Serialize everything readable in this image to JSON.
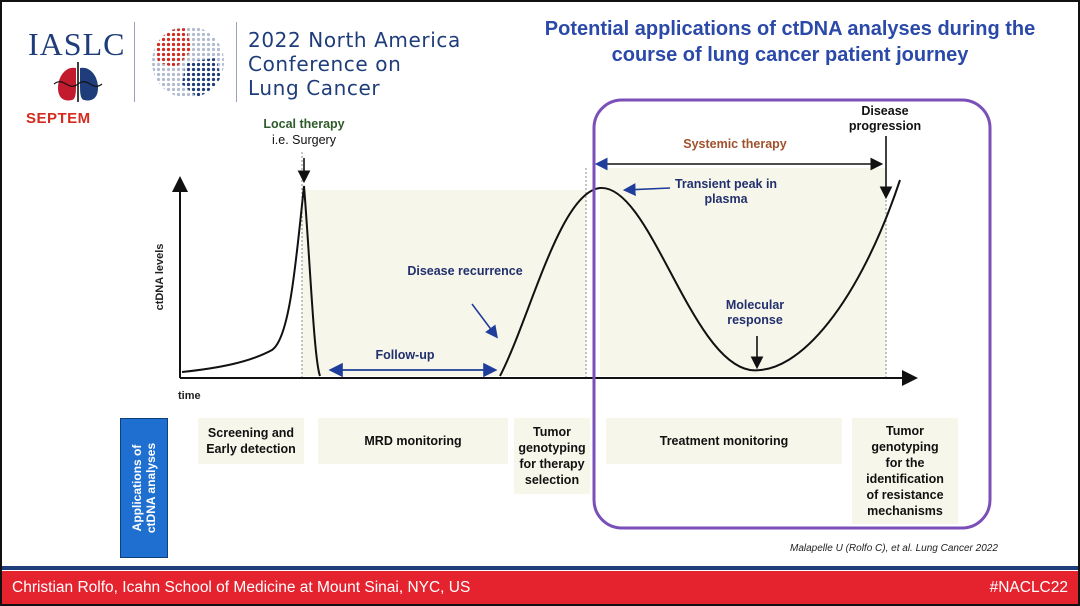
{
  "header": {
    "org": "IASLC",
    "month": "SEPTEM",
    "conference_lines": [
      "2022 North America",
      "Conference on",
      "Lung Cancer"
    ]
  },
  "title": "Potential applications of ctDNA analyses during the course of lung cancer patient journey",
  "diagram": {
    "y_axis_label": "ctDNA levels",
    "x_axis_label": "time",
    "annotations": {
      "local_therapy": "Local therapy",
      "surgery": "i.e. Surgery",
      "systemic_therapy": "Systemic therapy",
      "disease_progression": [
        "Disease",
        "progression"
      ],
      "transient_peak": [
        "Transient peak in",
        "plasma"
      ],
      "disease_recurrence": "Disease recurrence",
      "molecular_response": [
        "Molecular",
        "response"
      ],
      "follow_up": "Follow-up"
    },
    "applications_label": [
      "Applications of",
      "ctDNA analyses"
    ],
    "phases": [
      [
        "Screening and",
        "Early detection"
      ],
      [
        "MRD monitoring"
      ],
      [
        "Tumor",
        "genotyping",
        "for therapy",
        "selection"
      ],
      [
        "Treatment monitoring"
      ],
      [
        "Tumor",
        "genotyping",
        "for the",
        "identification",
        "of resistance",
        "mechanisms"
      ]
    ],
    "colors": {
      "curve": "#111111",
      "arrow_blue": "#1f3d9a",
      "highlight_box": "#7b4fb8",
      "panel_background": "#f7f6ea"
    }
  },
  "citation": "Malapelle U (Rolfo C), et al. Lung Cancer 2022",
  "footer": {
    "speaker": "Christian Rolfo, Icahn School of Medicine at Mount Sinai, NYC, US",
    "hashtag": "#NACLC22"
  }
}
